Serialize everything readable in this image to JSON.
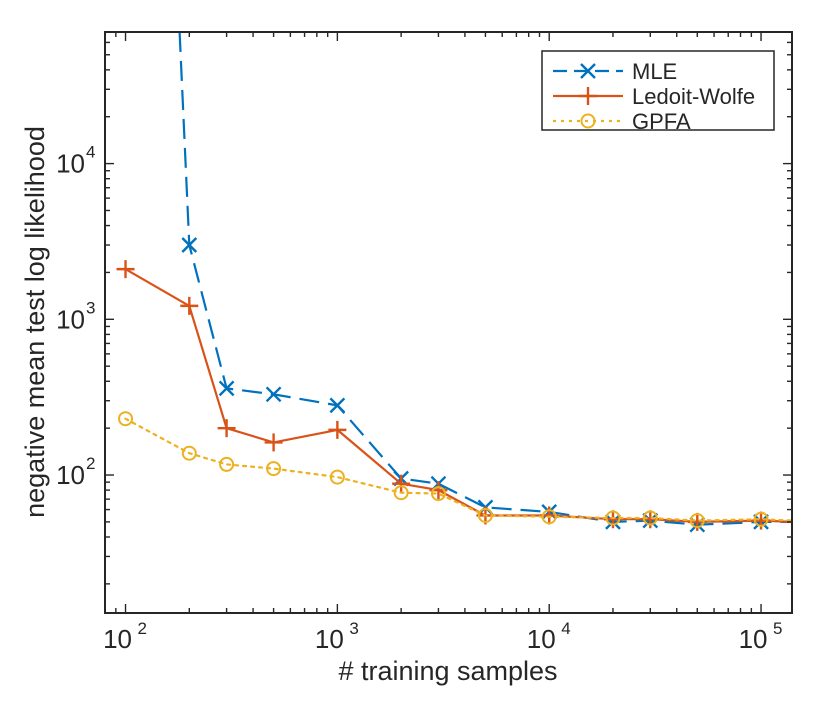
{
  "chart_data": {
    "type": "line",
    "xscale": "log",
    "yscale": "log",
    "xlabel": "# training samples",
    "ylabel": "negative mean test log likelihood",
    "xlim": [
      80,
      140000
    ],
    "ylim": [
      13,
      70000
    ],
    "xticks": [
      {
        "value": 100,
        "base": "10",
        "exp": "2"
      },
      {
        "value": 1000,
        "base": "10",
        "exp": "3"
      },
      {
        "value": 10000,
        "base": "10",
        "exp": "4"
      },
      {
        "value": 100000,
        "base": "10",
        "exp": "5"
      }
    ],
    "yticks": [
      {
        "value": 100,
        "base": "10",
        "exp": "2"
      },
      {
        "value": 1000,
        "base": "10",
        "exp": "3"
      },
      {
        "value": 10000,
        "base": "10",
        "exp": "4"
      }
    ],
    "legend_position": "top-right",
    "series": [
      {
        "name": "MLE",
        "color": "#0072BD",
        "linestyle": "dashed",
        "marker": "x",
        "x": [
          200,
          300,
          500,
          1000,
          2000,
          3000,
          5000,
          10000,
          20000,
          30000,
          50000,
          100000,
          140000
        ],
        "y": [
          3000,
          360,
          330,
          280,
          95,
          88,
          62,
          58,
          50,
          51,
          48,
          50,
          50
        ],
        "line_extends_above": {
          "x": 180,
          "y": 70000
        }
      },
      {
        "name": "Ledoit-Wolfe",
        "color": "#D95319",
        "linestyle": "solid",
        "marker": "+",
        "x": [
          100,
          200,
          300,
          500,
          1000,
          2000,
          3000,
          5000,
          10000,
          20000,
          30000,
          50000,
          100000,
          140000
        ],
        "y": [
          2100,
          1220,
          200,
          162,
          195,
          88,
          80,
          55,
          55,
          52,
          52,
          50,
          51,
          50
        ]
      },
      {
        "name": "GPFA",
        "color": "#EDB120",
        "linestyle": "dotted",
        "marker": "o",
        "x": [
          100,
          200,
          300,
          500,
          1000,
          2000,
          3000,
          5000,
          10000,
          20000,
          30000,
          50000,
          100000,
          140000
        ],
        "y": [
          230,
          138,
          117,
          110,
          97,
          77,
          76,
          55,
          54,
          53,
          53,
          51,
          52,
          51
        ]
      }
    ]
  }
}
